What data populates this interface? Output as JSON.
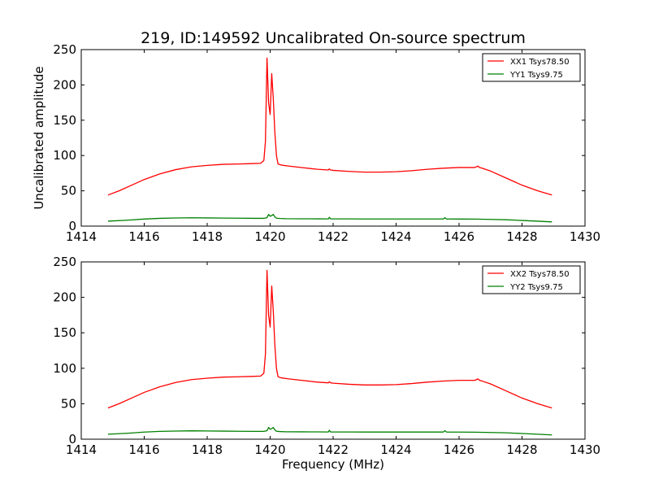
{
  "figure": {
    "title": "219, ID:149592 Uncalibrated On-source spectrum"
  },
  "chart_data": [
    {
      "type": "line",
      "title": "219, ID:149592 Uncalibrated On-source spectrum",
      "xlabel": "",
      "ylabel": "Uncalibrated amplitude",
      "xlim": [
        1414,
        1430
      ],
      "ylim": [
        0,
        250
      ],
      "xticks": [
        1414,
        1416,
        1418,
        1420,
        1422,
        1424,
        1426,
        1428,
        1430
      ],
      "yticks": [
        0,
        50,
        100,
        150,
        200,
        250
      ],
      "legend_position": "top-right",
      "grid": false,
      "series": [
        {
          "name": "XX1 Tsys78.50",
          "color": "#ff0000",
          "x": [
            1414.85,
            1415.2,
            1415.6,
            1416.0,
            1416.5,
            1417.0,
            1417.5,
            1418.0,
            1418.5,
            1419.0,
            1419.4,
            1419.7,
            1419.8,
            1419.85,
            1419.9,
            1419.95,
            1420.0,
            1420.05,
            1420.1,
            1420.15,
            1420.2,
            1420.25,
            1420.35,
            1420.6,
            1421.0,
            1421.5,
            1421.85,
            1421.88,
            1421.92,
            1422.0,
            1422.5,
            1423.0,
            1423.5,
            1424.0,
            1424.5,
            1425.0,
            1425.5,
            1426.0,
            1426.5,
            1426.6,
            1426.65,
            1426.7,
            1427.0,
            1427.5,
            1428.0,
            1428.5,
            1428.95
          ],
          "y": [
            44,
            50,
            58,
            66,
            74,
            80,
            84,
            86,
            87.5,
            88,
            88.5,
            89,
            93,
            120,
            238,
            175,
            158,
            216,
            180,
            132,
            100,
            88,
            86.5,
            85,
            83,
            80.5,
            79.5,
            81,
            79.5,
            79,
            77.5,
            76.5,
            76.5,
            77,
            78.5,
            80.5,
            82,
            83,
            83,
            85,
            83,
            82.5,
            78,
            68,
            58,
            50,
            44
          ]
        },
        {
          "name": "YY1 Tsys9.75",
          "color": "#008000",
          "x": [
            1414.85,
            1415.5,
            1416.0,
            1416.5,
            1417.0,
            1417.5,
            1418.0,
            1418.5,
            1419.0,
            1419.5,
            1419.8,
            1419.9,
            1419.95,
            1420.0,
            1420.05,
            1420.1,
            1420.15,
            1420.2,
            1420.3,
            1420.5,
            1421.0,
            1421.5,
            1421.85,
            1421.88,
            1421.92,
            1422.5,
            1423.0,
            1424.0,
            1425.0,
            1425.5,
            1425.55,
            1425.6,
            1426.0,
            1426.5,
            1427.0,
            1427.5,
            1428.0,
            1428.5,
            1428.95
          ],
          "y": [
            7,
            8.5,
            10,
            11,
            11.5,
            11.8,
            11.6,
            11.4,
            11.2,
            11,
            11,
            12,
            16.5,
            14,
            15,
            16.5,
            13,
            11.2,
            10.8,
            10.5,
            10.4,
            10.3,
            10.2,
            12.5,
            10.2,
            10.2,
            10.1,
            10.1,
            10.1,
            10.1,
            12,
            10.1,
            10,
            9.9,
            9.5,
            9,
            8,
            7,
            6
          ]
        }
      ]
    },
    {
      "type": "line",
      "title": "",
      "xlabel": "Frequency (MHz)",
      "ylabel": "",
      "xlim": [
        1414,
        1430
      ],
      "ylim": [
        0,
        250
      ],
      "xticks": [
        1414,
        1416,
        1418,
        1420,
        1422,
        1424,
        1426,
        1428,
        1430
      ],
      "yticks": [
        0,
        50,
        100,
        150,
        200,
        250
      ],
      "legend_position": "top-right",
      "grid": false,
      "series": [
        {
          "name": "XX2 Tsys78.50",
          "color": "#ff0000",
          "x": [
            1414.85,
            1415.2,
            1415.6,
            1416.0,
            1416.5,
            1417.0,
            1417.5,
            1418.0,
            1418.5,
            1419.0,
            1419.4,
            1419.7,
            1419.8,
            1419.85,
            1419.9,
            1419.95,
            1420.0,
            1420.05,
            1420.1,
            1420.15,
            1420.2,
            1420.25,
            1420.35,
            1420.6,
            1421.0,
            1421.5,
            1421.85,
            1421.88,
            1421.92,
            1422.0,
            1422.5,
            1423.0,
            1423.5,
            1424.0,
            1424.5,
            1425.0,
            1425.5,
            1426.0,
            1426.5,
            1426.6,
            1426.65,
            1426.7,
            1427.0,
            1427.5,
            1428.0,
            1428.5,
            1428.95
          ],
          "y": [
            44,
            50,
            58,
            66,
            74,
            80,
            84,
            86,
            87.5,
            88,
            88.5,
            89,
            93,
            120,
            238,
            175,
            158,
            216,
            180,
            132,
            100,
            88,
            86.5,
            85,
            83,
            80.5,
            79.5,
            81,
            79.5,
            79,
            77.5,
            76.5,
            76.5,
            77,
            78.5,
            80.5,
            82,
            83,
            83,
            85,
            83,
            82.5,
            78,
            68,
            58,
            50,
            44
          ]
        },
        {
          "name": "YY2 Tsys9.75",
          "color": "#008000",
          "x": [
            1414.85,
            1415.5,
            1416.0,
            1416.5,
            1417.0,
            1417.5,
            1418.0,
            1418.5,
            1419.0,
            1419.5,
            1419.8,
            1419.9,
            1419.95,
            1420.0,
            1420.05,
            1420.1,
            1420.15,
            1420.2,
            1420.3,
            1420.5,
            1421.0,
            1421.5,
            1421.85,
            1421.88,
            1421.92,
            1422.5,
            1423.0,
            1424.0,
            1425.0,
            1425.5,
            1425.55,
            1425.6,
            1426.0,
            1426.5,
            1427.0,
            1427.5,
            1428.0,
            1428.5,
            1428.95
          ],
          "y": [
            7,
            8.5,
            10,
            11,
            11.5,
            11.8,
            11.6,
            11.4,
            11.2,
            11,
            11,
            12,
            16.5,
            14,
            15,
            16.5,
            13,
            11.2,
            10.8,
            10.5,
            10.4,
            10.3,
            10.2,
            12.5,
            10.2,
            10.2,
            10.1,
            10.1,
            10.1,
            10.1,
            12,
            10.1,
            10,
            9.9,
            9.5,
            9,
            8,
            7,
            6
          ]
        }
      ]
    }
  ]
}
